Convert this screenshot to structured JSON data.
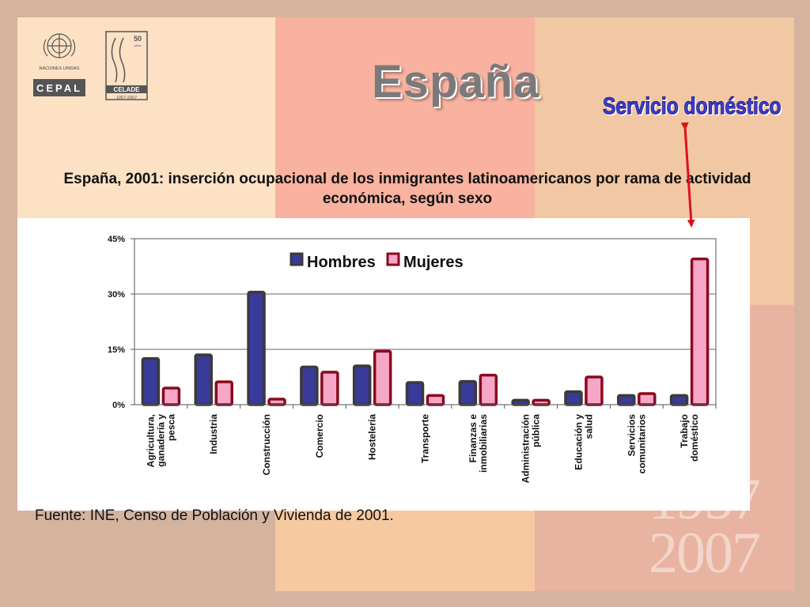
{
  "slide": {
    "title": "España",
    "annotation": "Servicio doméstico",
    "source": "Fuente: INE, Censo de Población y Vivienda de 2001.",
    "logos": {
      "un_label": "NACIONES UNIDAS",
      "cepal": "CEPAL",
      "celade": "CELADE",
      "celade_years": "1957-2007",
      "celade_badge": "50",
      "celade_badge_sub": "años"
    },
    "watermark_years": [
      "1957",
      "2007"
    ]
  },
  "chart_data": {
    "type": "bar",
    "title": "España, 2001: inserción ocupacional de los inmigrantes latinoamericanos por rama de actividad económica, según sexo",
    "categories": [
      "Agricultura, ganadería y pesca",
      "Industria",
      "Construcción",
      "Comercio",
      "Hostelería",
      "Transporte",
      "Finanzas e inmobiliarias",
      "Administración pública",
      "Educación y salud",
      "Servicios comunitarios",
      "Trabajo doméstico"
    ],
    "series": [
      {
        "name": "Hombres",
        "values": [
          12.5,
          13.5,
          30.5,
          10.2,
          10.5,
          6.0,
          6.3,
          1.2,
          3.5,
          2.5,
          2.5
        ]
      },
      {
        "name": "Mujeres",
        "values": [
          4.5,
          6.2,
          1.5,
          8.8,
          14.5,
          2.5,
          8.0,
          1.2,
          7.5,
          3.0,
          39.5
        ]
      }
    ],
    "ylim": [
      0,
      45
    ],
    "yticks": [
      "0%",
      "15%",
      "30%",
      "45%"
    ],
    "ytick_values": [
      0,
      15,
      30,
      45
    ],
    "grid": true,
    "legend": "top-left",
    "colors": {
      "Hombres": "#3a3a9a",
      "Mujeres": "#f6a6c6",
      "Hombres_edge": "#3a3a3a",
      "Mujeres_edge": "#8a0a1e"
    }
  }
}
